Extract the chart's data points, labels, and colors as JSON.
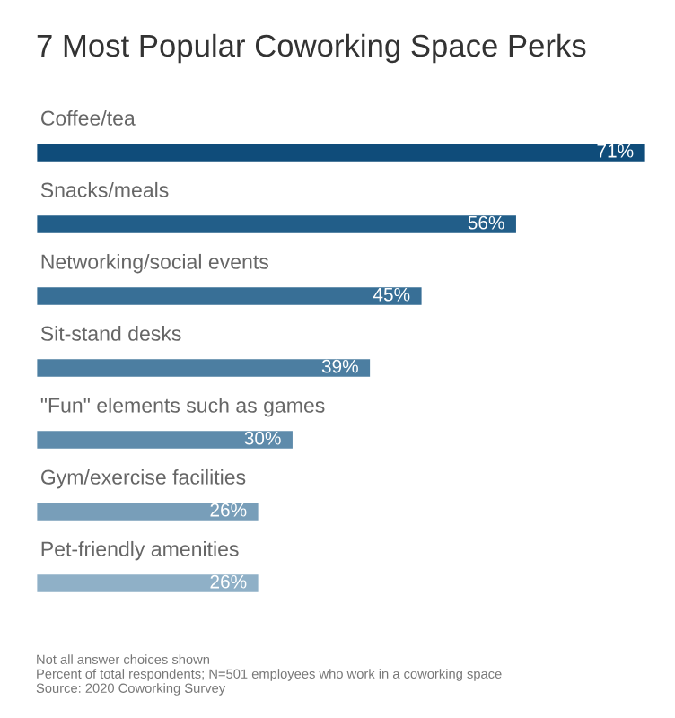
{
  "chart_data": {
    "type": "bar",
    "orientation": "horizontal",
    "title": "7 Most Popular Coworking Space Perks",
    "categories": [
      "Coffee/tea",
      "Snacks/meals",
      "Networking/social events",
      "Sit-stand desks",
      "\"Fun\" elements such as games",
      "Gym/exercise facilities",
      "Pet-friendly amenities"
    ],
    "values": [
      71,
      56,
      45,
      39,
      30,
      26,
      26
    ],
    "value_labels": [
      "71%",
      "56%",
      "45%",
      "39%",
      "30%",
      "26%",
      "26%"
    ],
    "colors": [
      "#0f4c7a",
      "#225e89",
      "#386f96",
      "#4c7ea1",
      "#5e8bab",
      "#789eb9",
      "#8fb0c7"
    ],
    "annotations": [
      "Not all answer choices shown",
      "Percent of total respondents; N=501 employees who work in a coworking space",
      "Source: 2020 Coworking Survey"
    ]
  }
}
